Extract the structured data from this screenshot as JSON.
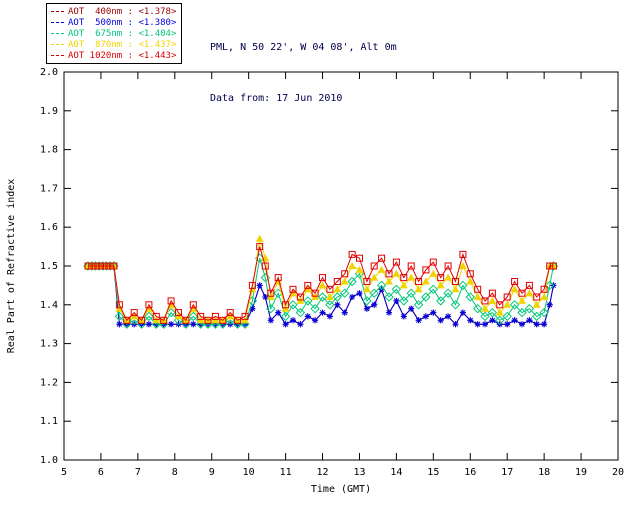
{
  "header": {
    "site": "PML, N 50 22', W 04 08', Alt 0m",
    "date": "Data from: 17 Jun 2010"
  },
  "legend": {
    "entries": [
      {
        "label": "AOT  400nm : <1.378>",
        "color": "#990000"
      },
      {
        "label": "AOT  500nm : <1.380>",
        "color": "#0000dd"
      },
      {
        "label": "AOT  675nm : <1.404>",
        "color": "#00c878"
      },
      {
        "label": "AOT  870nm : <1.437>",
        "color": "#f0d400"
      },
      {
        "label": "AOT 1020nm : <1.443>",
        "color": "#e00000"
      }
    ]
  },
  "chart_data": {
    "type": "line",
    "title": "",
    "xlabel": "Time (GMT)",
    "ylabel": "Real Part of Refractive index",
    "xlim": [
      5,
      20
    ],
    "ylim": [
      1.0,
      2.0
    ],
    "xtick_step": 1,
    "ytick_step": 0.1,
    "grid": false,
    "legend_position": "top-left",
    "x": [
      5.65,
      5.75,
      5.85,
      5.95,
      6.05,
      6.15,
      6.25,
      6.35,
      6.5,
      6.7,
      6.9,
      7.1,
      7.3,
      7.5,
      7.7,
      7.9,
      8.1,
      8.3,
      8.5,
      8.7,
      8.9,
      9.1,
      9.3,
      9.5,
      9.7,
      9.9,
      10.1,
      10.3,
      10.45,
      10.6,
      10.8,
      11.0,
      11.2,
      11.4,
      11.6,
      11.8,
      12.0,
      12.2,
      12.4,
      12.6,
      12.8,
      13.0,
      13.2,
      13.4,
      13.6,
      13.8,
      14.0,
      14.2,
      14.4,
      14.6,
      14.8,
      15.0,
      15.2,
      15.4,
      15.6,
      15.8,
      16.0,
      16.2,
      16.4,
      16.6,
      16.8,
      17.0,
      17.2,
      17.4,
      17.6,
      17.8,
      18.0,
      18.15,
      18.25
    ],
    "series": [
      {
        "name": "AOT 400nm",
        "mean": 1.378,
        "color": "#990000",
        "marker": "plus",
        "values": [
          1.5,
          1.5,
          1.5,
          1.5,
          1.5,
          1.5,
          1.5,
          1.5,
          1.35,
          1.35,
          1.35,
          1.35,
          1.35,
          1.35,
          1.35,
          1.35,
          1.35,
          1.35,
          1.35,
          1.35,
          1.35,
          1.35,
          1.35,
          1.35,
          1.35,
          1.35,
          1.39,
          1.45,
          1.42,
          1.36,
          1.38,
          1.35,
          1.36,
          1.35,
          1.37,
          1.36,
          1.38,
          1.37,
          1.4,
          1.38,
          1.42,
          1.43,
          1.39,
          1.4,
          1.44,
          1.38,
          1.41,
          1.37,
          1.39,
          1.36,
          1.37,
          1.38,
          1.36,
          1.37,
          1.35,
          1.38,
          1.36,
          1.35,
          1.35,
          1.36,
          1.35,
          1.35,
          1.36,
          1.35,
          1.36,
          1.35,
          1.35,
          1.4,
          1.45
        ]
      },
      {
        "name": "AOT 500nm",
        "mean": 1.38,
        "color": "#0000dd",
        "marker": "asterisk",
        "values": [
          1.5,
          1.5,
          1.5,
          1.5,
          1.5,
          1.5,
          1.5,
          1.5,
          1.35,
          1.35,
          1.35,
          1.35,
          1.35,
          1.35,
          1.35,
          1.35,
          1.35,
          1.35,
          1.35,
          1.35,
          1.35,
          1.35,
          1.35,
          1.35,
          1.35,
          1.35,
          1.39,
          1.45,
          1.42,
          1.36,
          1.38,
          1.35,
          1.36,
          1.35,
          1.37,
          1.36,
          1.38,
          1.37,
          1.4,
          1.38,
          1.42,
          1.43,
          1.39,
          1.4,
          1.44,
          1.38,
          1.41,
          1.37,
          1.39,
          1.36,
          1.37,
          1.38,
          1.36,
          1.37,
          1.35,
          1.38,
          1.36,
          1.35,
          1.35,
          1.36,
          1.35,
          1.35,
          1.36,
          1.35,
          1.36,
          1.35,
          1.35,
          1.4,
          1.45
        ]
      },
      {
        "name": "AOT 675nm",
        "mean": 1.404,
        "color": "#00c878",
        "marker": "diamond",
        "values": [
          1.5,
          1.5,
          1.5,
          1.5,
          1.5,
          1.5,
          1.5,
          1.5,
          1.37,
          1.35,
          1.36,
          1.35,
          1.37,
          1.35,
          1.35,
          1.38,
          1.36,
          1.35,
          1.37,
          1.35,
          1.35,
          1.35,
          1.35,
          1.36,
          1.35,
          1.35,
          1.41,
          1.52,
          1.47,
          1.39,
          1.43,
          1.37,
          1.4,
          1.38,
          1.41,
          1.39,
          1.42,
          1.4,
          1.42,
          1.43,
          1.46,
          1.48,
          1.41,
          1.43,
          1.45,
          1.42,
          1.44,
          1.41,
          1.43,
          1.4,
          1.42,
          1.44,
          1.41,
          1.43,
          1.4,
          1.45,
          1.42,
          1.39,
          1.37,
          1.38,
          1.36,
          1.37,
          1.4,
          1.38,
          1.39,
          1.37,
          1.38,
          1.45,
          1.5
        ]
      },
      {
        "name": "AOT 870nm",
        "mean": 1.437,
        "color": "#f0d400",
        "marker": "triangle",
        "values": [
          1.5,
          1.5,
          1.5,
          1.5,
          1.5,
          1.5,
          1.5,
          1.5,
          1.39,
          1.36,
          1.37,
          1.36,
          1.39,
          1.36,
          1.36,
          1.4,
          1.37,
          1.36,
          1.39,
          1.36,
          1.36,
          1.36,
          1.36,
          1.37,
          1.36,
          1.36,
          1.44,
          1.57,
          1.52,
          1.42,
          1.46,
          1.39,
          1.43,
          1.41,
          1.44,
          1.42,
          1.45,
          1.42,
          1.44,
          1.46,
          1.5,
          1.49,
          1.44,
          1.47,
          1.49,
          1.46,
          1.48,
          1.45,
          1.47,
          1.44,
          1.46,
          1.48,
          1.45,
          1.47,
          1.44,
          1.5,
          1.46,
          1.42,
          1.39,
          1.41,
          1.38,
          1.4,
          1.44,
          1.41,
          1.43,
          1.4,
          1.42,
          1.5,
          1.5
        ]
      },
      {
        "name": "AOT 1020nm",
        "mean": 1.443,
        "color": "#e00000",
        "marker": "square",
        "values": [
          1.5,
          1.5,
          1.5,
          1.5,
          1.5,
          1.5,
          1.5,
          1.5,
          1.4,
          1.36,
          1.38,
          1.36,
          1.4,
          1.37,
          1.36,
          1.41,
          1.38,
          1.36,
          1.4,
          1.37,
          1.36,
          1.37,
          1.36,
          1.38,
          1.36,
          1.37,
          1.45,
          1.55,
          1.5,
          1.43,
          1.47,
          1.4,
          1.44,
          1.42,
          1.45,
          1.43,
          1.47,
          1.44,
          1.46,
          1.48,
          1.53,
          1.52,
          1.46,
          1.5,
          1.52,
          1.48,
          1.51,
          1.47,
          1.5,
          1.46,
          1.49,
          1.51,
          1.47,
          1.5,
          1.46,
          1.53,
          1.48,
          1.44,
          1.41,
          1.43,
          1.4,
          1.42,
          1.46,
          1.43,
          1.45,
          1.42,
          1.44,
          1.5,
          1.5
        ]
      }
    ]
  }
}
